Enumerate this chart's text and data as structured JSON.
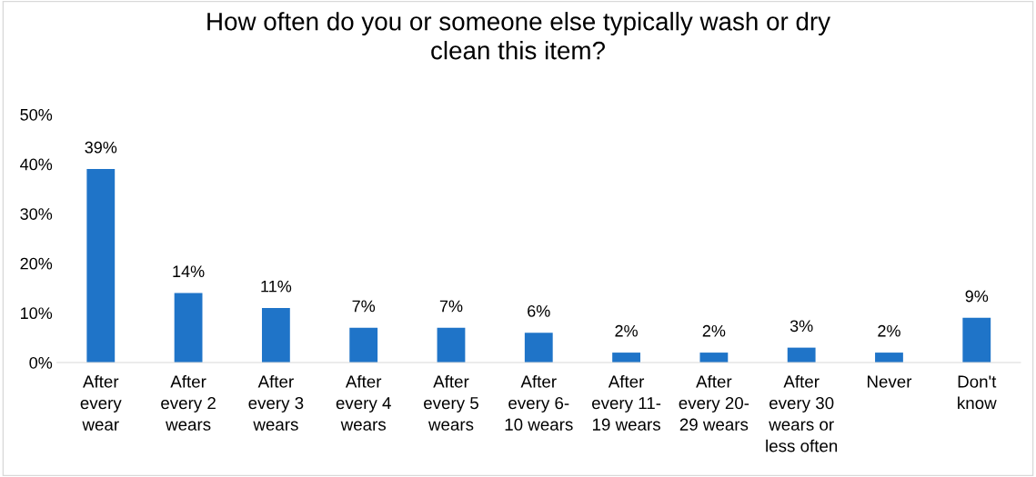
{
  "chart_data": {
    "type": "bar",
    "title": "How often do you or someone else typically wash or dry\nclean this item?",
    "categories": [
      "After\nevery\nwear",
      "After\nevery 2\nwears",
      "After\nevery 3\nwears",
      "After\nevery 4\nwears",
      "After\nevery 5\nwears",
      "After\nevery 6-\n10 wears",
      "After\nevery 11-\n19 wears",
      "After\nevery 20-\n29 wears",
      "After\nevery 30\nwears or\nless often",
      "Never",
      "Don't\nknow"
    ],
    "values": [
      39,
      14,
      11,
      7,
      7,
      6,
      2,
      2,
      3,
      2,
      9
    ],
    "value_labels": [
      "39%",
      "14%",
      "11%",
      "7%",
      "7%",
      "6%",
      "2%",
      "2%",
      "3%",
      "2%",
      "9%"
    ],
    "color": "#1f74c8",
    "ylim": [
      0,
      50
    ],
    "yticks": [
      {
        "value": 0,
        "label": "0%"
      },
      {
        "value": 10,
        "label": "10%"
      },
      {
        "value": 20,
        "label": "20%"
      },
      {
        "value": 30,
        "label": "30%"
      },
      {
        "value": 40,
        "label": "40%"
      },
      {
        "value": 50,
        "label": "50%"
      }
    ],
    "grid": false,
    "legend": false
  }
}
